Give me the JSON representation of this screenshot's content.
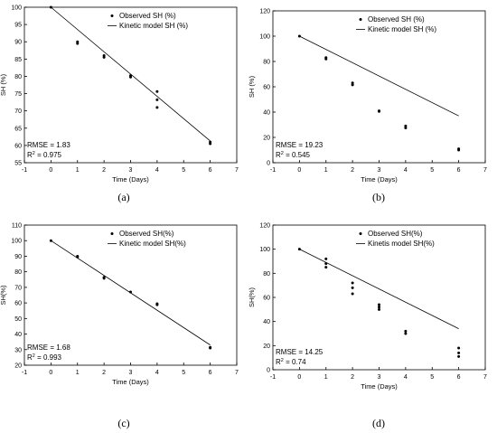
{
  "chart_data": [
    {
      "type": "scatter",
      "panel_label": "(a)",
      "xlabel": "Time (Days)",
      "ylabel": "SH (%)",
      "xlim": [
        -1,
        7
      ],
      "ylim": [
        55,
        100
      ],
      "xticks": [
        -1,
        0,
        1,
        2,
        3,
        4,
        5,
        6,
        7
      ],
      "yticks": [
        55,
        60,
        65,
        70,
        75,
        80,
        85,
        90,
        95,
        100
      ],
      "legend_position": "top-right",
      "series": [
        {
          "name": "Observed SH (%)",
          "kind": "points",
          "points": [
            [
              0,
              100
            ],
            [
              1,
              90
            ],
            [
              1,
              89.5
            ],
            [
              2,
              86
            ],
            [
              2,
              85.5
            ],
            [
              3,
              80.2
            ],
            [
              3,
              79.8
            ],
            [
              4,
              75.6
            ],
            [
              4,
              73.2
            ],
            [
              4,
              71
            ],
            [
              6,
              61
            ],
            [
              6,
              60.5
            ]
          ]
        },
        {
          "name": "Kinetic model SH (%)",
          "kind": "line",
          "points": [
            [
              0,
              100
            ],
            [
              6,
              61.3
            ]
          ]
        }
      ],
      "annotations": {
        "rmse": "RMSE = 1.83",
        "r2_prefix": "R",
        "r2_sup": "2",
        "r2_value": " = 0.975"
      }
    },
    {
      "type": "scatter",
      "panel_label": "(b)",
      "xlabel": "Time (Days)",
      "ylabel": "SH (%)",
      "xlim": [
        -1,
        7
      ],
      "ylim": [
        0,
        120
      ],
      "xticks": [
        -1,
        0,
        1,
        2,
        3,
        4,
        5,
        6,
        7
      ],
      "yticks": [
        0,
        20,
        40,
        60,
        80,
        100,
        120
      ],
      "legend_position": "top-right",
      "series": [
        {
          "name": "Observed SH (%)",
          "kind": "points",
          "points": [
            [
              0,
              100
            ],
            [
              1,
              83
            ],
            [
              1,
              82
            ],
            [
              2,
              63
            ],
            [
              2,
              61.5
            ],
            [
              3,
              41
            ],
            [
              3,
              40.5
            ],
            [
              4,
              29
            ],
            [
              4,
              27.5
            ],
            [
              6,
              11
            ],
            [
              6,
              10
            ]
          ]
        },
        {
          "name": "Kinetic model SH (%)",
          "kind": "line",
          "points": [
            [
              0,
              100
            ],
            [
              6,
              37
            ]
          ]
        }
      ],
      "annotations": {
        "rmse": "RMSE = 19.23",
        "r2_prefix": "R",
        "r2_sup": "2",
        "r2_value": " = 0.545"
      }
    },
    {
      "type": "scatter",
      "panel_label": "(c)",
      "xlabel": "Time (Days)",
      "ylabel": "SH(%)",
      "xlim": [
        -1,
        7
      ],
      "ylim": [
        20,
        110
      ],
      "xticks": [
        -1,
        0,
        1,
        2,
        3,
        4,
        5,
        6,
        7
      ],
      "yticks": [
        20,
        30,
        40,
        50,
        60,
        70,
        80,
        90,
        100,
        110
      ],
      "legend_position": "top-right",
      "series": [
        {
          "name": "Observed SH(%)",
          "kind": "points",
          "points": [
            [
              0,
              100
            ],
            [
              1,
              90
            ],
            [
              1,
              89.5
            ],
            [
              2,
              76.5
            ],
            [
              2,
              75.8
            ],
            [
              3,
              67
            ],
            [
              4,
              59.5
            ],
            [
              4,
              58.8
            ],
            [
              6,
              31.5
            ],
            [
              6,
              31
            ]
          ]
        },
        {
          "name": "Kinetic model SH(%)",
          "kind": "line",
          "points": [
            [
              0,
              100
            ],
            [
              6,
              33
            ]
          ]
        }
      ],
      "annotations": {
        "rmse": "RMSE = 1.68",
        "r2_prefix": "R",
        "r2_sup": "2",
        "r2_value": " = 0.993"
      }
    },
    {
      "type": "scatter",
      "panel_label": "(d)",
      "xlabel": "Time (Days)",
      "ylabel": "SH(%)",
      "xlim": [
        -1,
        7
      ],
      "ylim": [
        0,
        120
      ],
      "xticks": [
        -1,
        0,
        1,
        2,
        3,
        4,
        5,
        6,
        7
      ],
      "yticks": [
        0,
        20,
        40,
        60,
        80,
        100,
        120
      ],
      "legend_position": "top-right",
      "series": [
        {
          "name": "Observed SH(%)",
          "kind": "points",
          "points": [
            [
              0,
              100
            ],
            [
              1,
              92
            ],
            [
              1,
              88
            ],
            [
              1,
              85
            ],
            [
              2,
              72
            ],
            [
              2,
              68
            ],
            [
              2,
              63
            ],
            [
              3,
              54
            ],
            [
              3,
              52
            ],
            [
              3,
              50
            ],
            [
              4,
              32
            ],
            [
              4,
              30
            ],
            [
              6,
              18
            ],
            [
              6,
              14
            ],
            [
              6,
              11
            ]
          ]
        },
        {
          "name": "Kinetis model SH(%)",
          "kind": "line",
          "points": [
            [
              0,
              100
            ],
            [
              6,
              34
            ]
          ]
        }
      ],
      "annotations": {
        "rmse": "RMSE = 14.25",
        "r2_prefix": "R",
        "r2_sup": "2",
        "r2_value": " = 0.74"
      }
    }
  ]
}
